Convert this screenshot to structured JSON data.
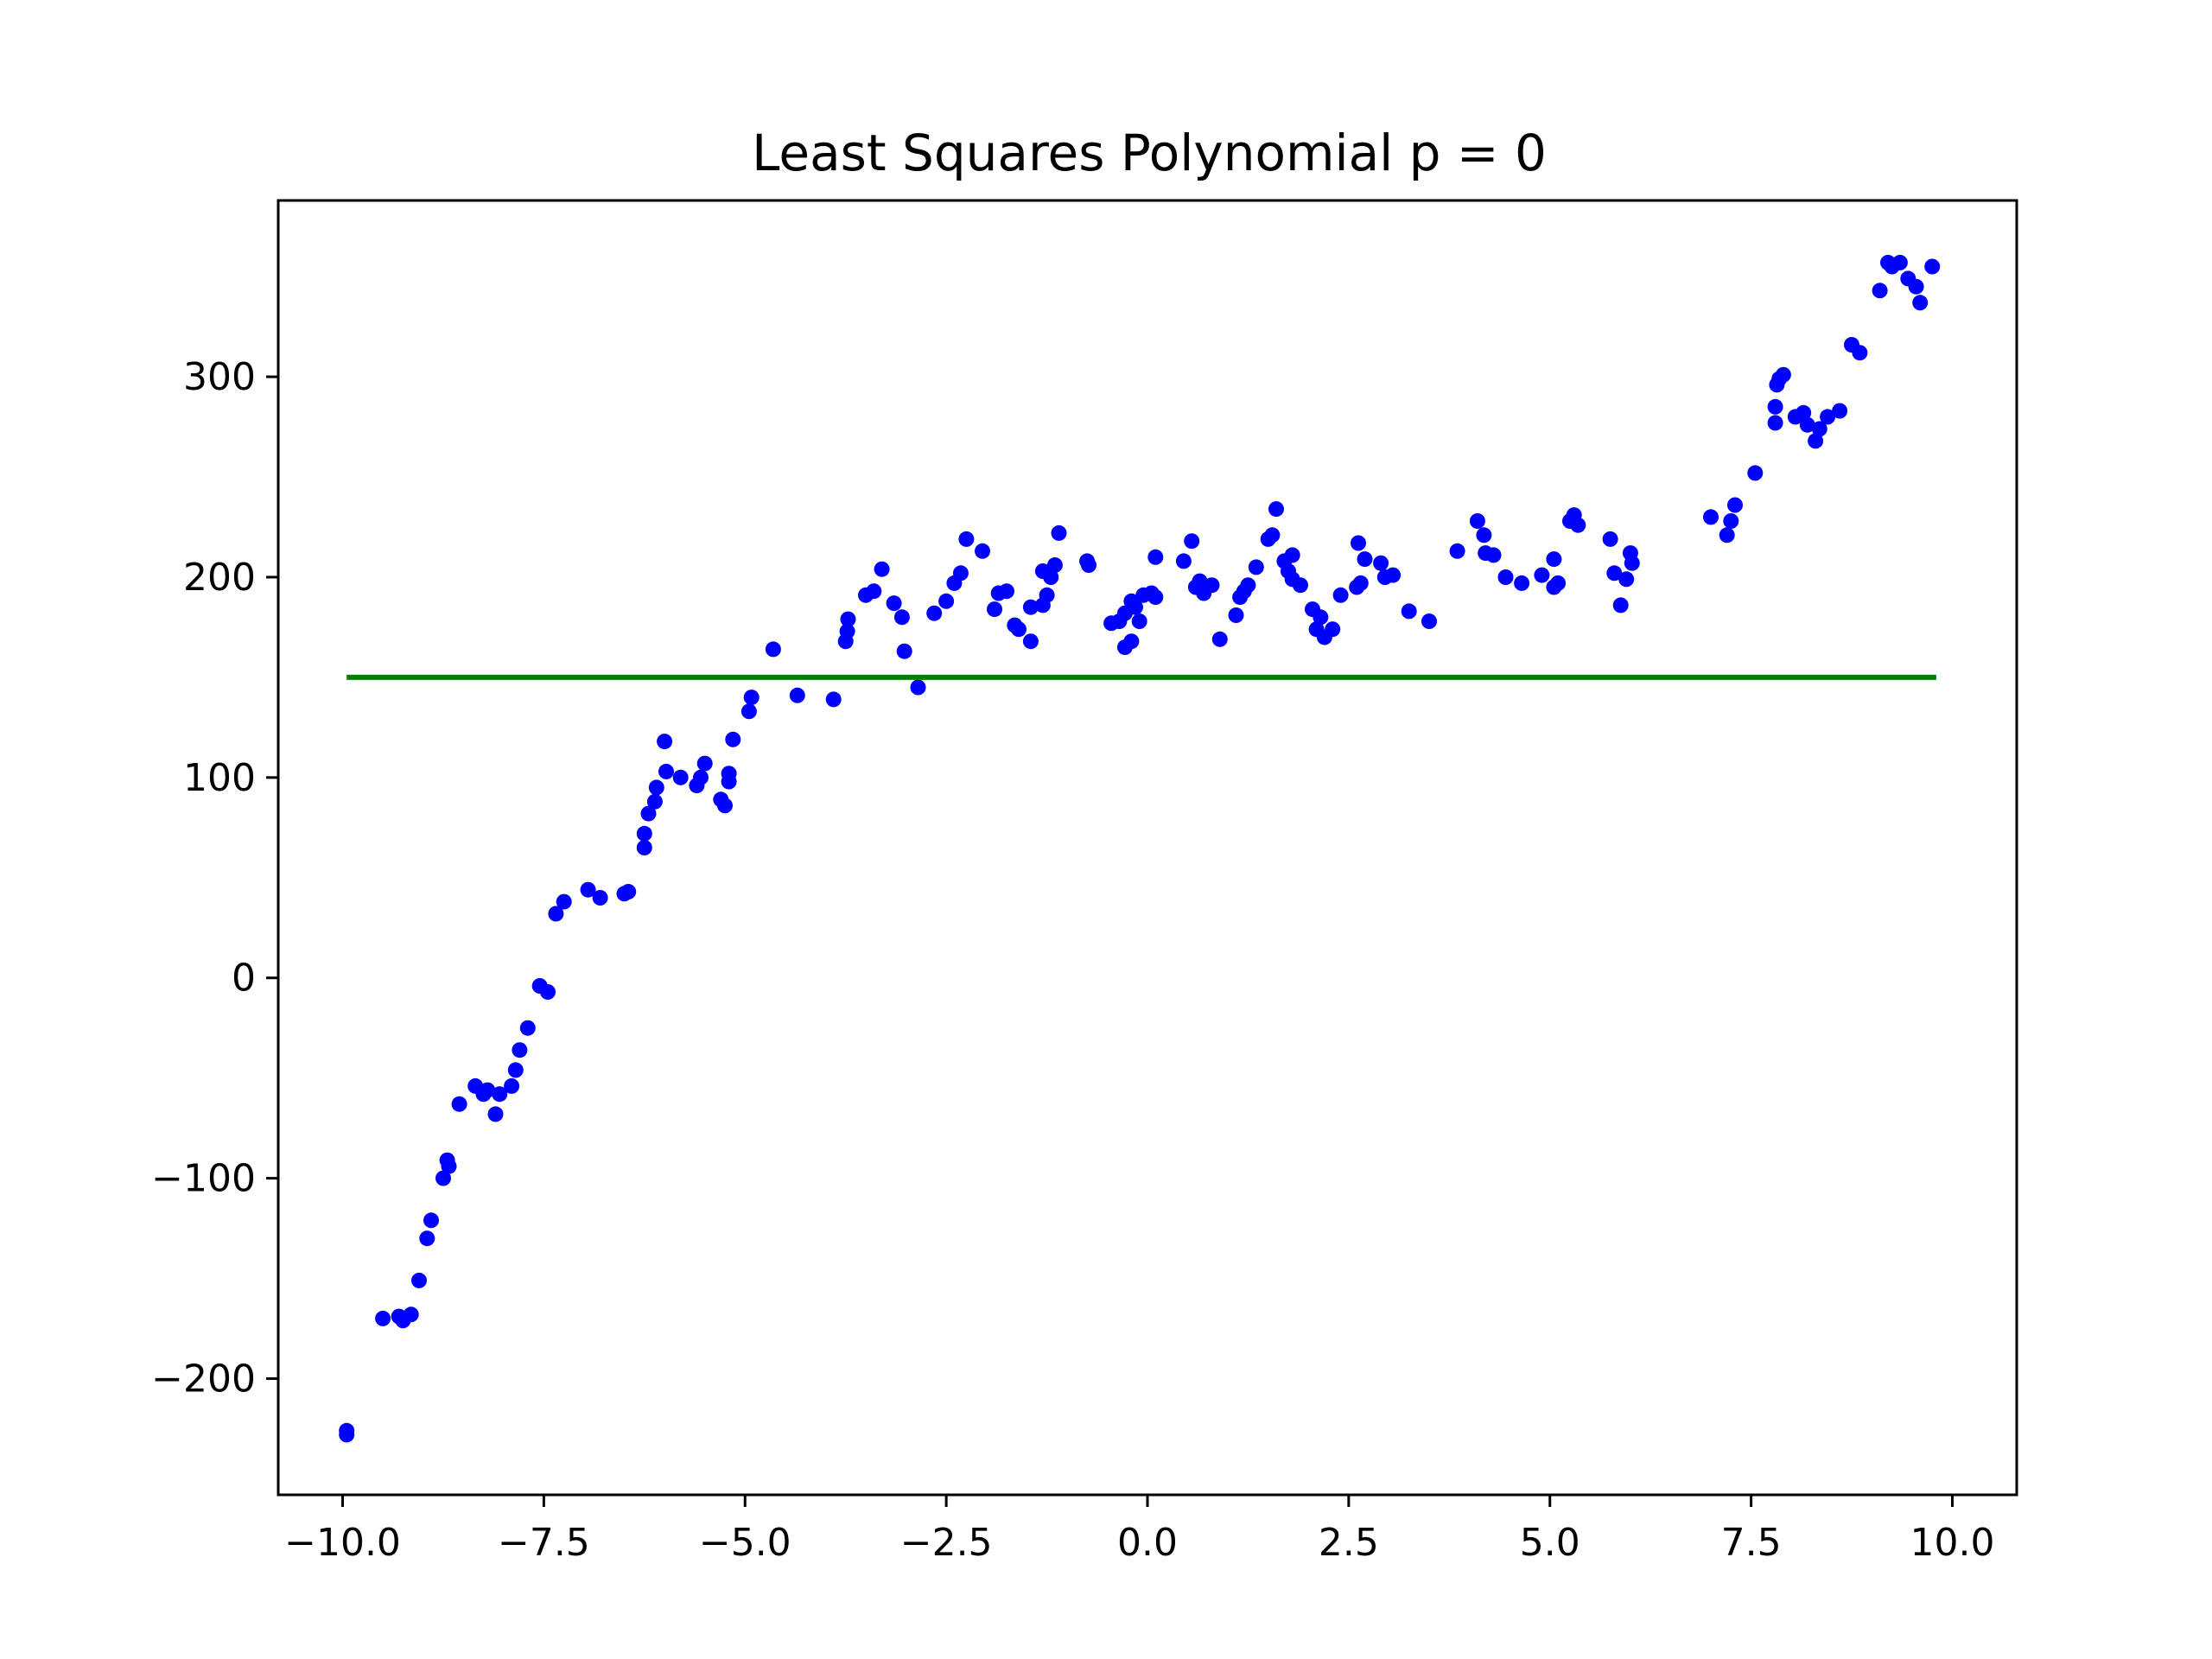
{
  "chart_data": {
    "type": "scatter",
    "title": "Least Squares Polynomial p = 0",
    "xlabel": "",
    "ylabel": "",
    "xlim": [
      -10.8,
      10.8
    ],
    "ylim": [
      -258,
      388
    ],
    "x_ticks": [
      -10.0,
      -7.5,
      -5.0,
      -2.5,
      0.0,
      2.5,
      5.0,
      7.5,
      10.0
    ],
    "x_tick_labels": [
      "−10.0",
      "−7.5",
      "−5.0",
      "−2.5",
      "0.0",
      "2.5",
      "5.0",
      "7.5",
      "10.0"
    ],
    "y_ticks": [
      -200,
      -100,
      0,
      100,
      200,
      300
    ],
    "y_tick_labels": [
      "−200",
      "−100",
      "0",
      "100",
      "200",
      "300"
    ],
    "grid": false,
    "series": [
      {
        "type": "scatter",
        "color": "#0000ff",
        "points": [
          [
            -9.95,
            -228
          ],
          [
            -9.95,
            -226
          ],
          [
            -9.5,
            -170
          ],
          [
            -9.3,
            -169
          ],
          [
            -9.25,
            -171
          ],
          [
            -9.15,
            -168
          ],
          [
            -9.05,
            -151
          ],
          [
            -8.95,
            -130
          ],
          [
            -8.9,
            -121
          ],
          [
            -8.75,
            -100
          ],
          [
            -8.7,
            -91
          ],
          [
            -8.68,
            -94
          ],
          [
            -8.55,
            -63
          ],
          [
            -8.35,
            -54
          ],
          [
            -8.25,
            -58
          ],
          [
            -8.2,
            -56
          ],
          [
            -8.1,
            -68
          ],
          [
            -8.05,
            -58
          ],
          [
            -7.9,
            -54
          ],
          [
            -7.85,
            -46
          ],
          [
            -7.8,
            -36
          ],
          [
            -7.7,
            -25
          ],
          [
            -7.55,
            -4
          ],
          [
            -7.45,
            -7
          ],
          [
            -7.35,
            32
          ],
          [
            -7.25,
            38
          ],
          [
            -6.95,
            44
          ],
          [
            -6.8,
            40
          ],
          [
            -6.5,
            42
          ],
          [
            -6.45,
            43
          ],
          [
            -6.25,
            65
          ],
          [
            -6.25,
            72
          ],
          [
            -6.2,
            82
          ],
          [
            -6.12,
            88
          ],
          [
            -6.1,
            95
          ],
          [
            -6.0,
            118
          ],
          [
            -5.98,
            103
          ],
          [
            -5.8,
            100
          ],
          [
            -5.6,
            96
          ],
          [
            -5.55,
            100
          ],
          [
            -5.5,
            107
          ],
          [
            -5.3,
            89
          ],
          [
            -5.25,
            86
          ],
          [
            -5.2,
            98
          ],
          [
            -5.2,
            102
          ],
          [
            -5.15,
            119
          ],
          [
            -4.95,
            133
          ],
          [
            -4.92,
            140
          ],
          [
            -4.65,
            164
          ],
          [
            -4.35,
            141
          ],
          [
            -3.9,
            139
          ],
          [
            -3.75,
            168
          ],
          [
            -3.73,
            173
          ],
          [
            -3.72,
            179
          ],
          [
            -3.5,
            191
          ],
          [
            -3.4,
            193
          ],
          [
            -3.3,
            204
          ],
          [
            -3.15,
            187
          ],
          [
            -3.05,
            180
          ],
          [
            -3.02,
            163
          ],
          [
            -2.85,
            145
          ],
          [
            -2.65,
            182
          ],
          [
            -2.5,
            188
          ],
          [
            -2.4,
            197
          ],
          [
            -2.32,
            202
          ],
          [
            -2.25,
            219
          ],
          [
            -2.05,
            213
          ],
          [
            -1.9,
            184
          ],
          [
            -1.85,
            192
          ],
          [
            -1.75,
            193
          ],
          [
            -1.65,
            176
          ],
          [
            -1.6,
            174
          ],
          [
            -1.45,
            168
          ],
          [
            -1.45,
            185
          ],
          [
            -1.3,
            186
          ],
          [
            -1.3,
            203
          ],
          [
            -1.25,
            191
          ],
          [
            -1.2,
            200
          ],
          [
            -1.15,
            206
          ],
          [
            -1.1,
            222
          ],
          [
            -0.75,
            208
          ],
          [
            -0.73,
            206
          ],
          [
            -0.45,
            177
          ],
          [
            -0.35,
            178
          ],
          [
            -0.28,
            182
          ],
          [
            -0.28,
            165
          ],
          [
            -0.2,
            168
          ],
          [
            -0.2,
            188
          ],
          [
            -0.15,
            185
          ],
          [
            -0.1,
            178
          ],
          [
            -0.05,
            191
          ],
          [
            0.05,
            192
          ],
          [
            0.1,
            190
          ],
          [
            0.1,
            210
          ],
          [
            0.45,
            208
          ],
          [
            0.55,
            218
          ],
          [
            0.6,
            195
          ],
          [
            0.65,
            198
          ],
          [
            0.7,
            192
          ],
          [
            0.8,
            196
          ],
          [
            0.9,
            169
          ],
          [
            1.1,
            181
          ],
          [
            1.15,
            190
          ],
          [
            1.2,
            193
          ],
          [
            1.25,
            196
          ],
          [
            1.35,
            205
          ],
          [
            1.5,
            219
          ],
          [
            1.55,
            221
          ],
          [
            1.6,
            234
          ],
          [
            1.7,
            208
          ],
          [
            1.75,
            203
          ],
          [
            1.8,
            211
          ],
          [
            1.8,
            199
          ],
          [
            1.9,
            196
          ],
          [
            2.05,
            184
          ],
          [
            2.1,
            174
          ],
          [
            2.15,
            180
          ],
          [
            2.2,
            170
          ],
          [
            2.3,
            174
          ],
          [
            2.4,
            191
          ],
          [
            2.6,
            195
          ],
          [
            2.62,
            217
          ],
          [
            2.65,
            197
          ],
          [
            2.7,
            209
          ],
          [
            2.9,
            207
          ],
          [
            2.95,
            200
          ],
          [
            3.05,
            201
          ],
          [
            3.25,
            183
          ],
          [
            3.5,
            178
          ],
          [
            3.85,
            213
          ],
          [
            4.1,
            228
          ],
          [
            4.18,
            221
          ],
          [
            4.2,
            212
          ],
          [
            4.3,
            211
          ],
          [
            4.45,
            200
          ],
          [
            4.65,
            197
          ],
          [
            4.9,
            201
          ],
          [
            5.05,
            195
          ],
          [
            5.05,
            209
          ],
          [
            5.1,
            197
          ],
          [
            5.25,
            228
          ],
          [
            5.3,
            231
          ],
          [
            5.35,
            226
          ],
          [
            5.75,
            219
          ],
          [
            5.8,
            202
          ],
          [
            5.88,
            186
          ],
          [
            5.95,
            199
          ],
          [
            6.0,
            212
          ],
          [
            6.02,
            207
          ],
          [
            7.0,
            230
          ],
          [
            7.2,
            221
          ],
          [
            7.25,
            228
          ],
          [
            7.3,
            236
          ],
          [
            7.55,
            252
          ],
          [
            7.8,
            277
          ],
          [
            7.8,
            285
          ],
          [
            7.82,
            296
          ],
          [
            7.85,
            299
          ],
          [
            7.9,
            301
          ],
          [
            8.05,
            280
          ],
          [
            8.15,
            282
          ],
          [
            8.2,
            276
          ],
          [
            8.3,
            268
          ],
          [
            8.35,
            274
          ],
          [
            8.45,
            280
          ],
          [
            8.6,
            283
          ],
          [
            8.75,
            316
          ],
          [
            8.85,
            312
          ],
          [
            9.1,
            343
          ],
          [
            9.2,
            357
          ],
          [
            9.25,
            355
          ],
          [
            9.35,
            357
          ],
          [
            9.45,
            349
          ],
          [
            9.55,
            345
          ],
          [
            9.6,
            337
          ],
          [
            9.75,
            355
          ]
        ]
      },
      {
        "type": "line",
        "color": "#008000",
        "x": [
          -9.95,
          9.8
        ],
        "y": [
          150,
          150
        ]
      }
    ]
  }
}
